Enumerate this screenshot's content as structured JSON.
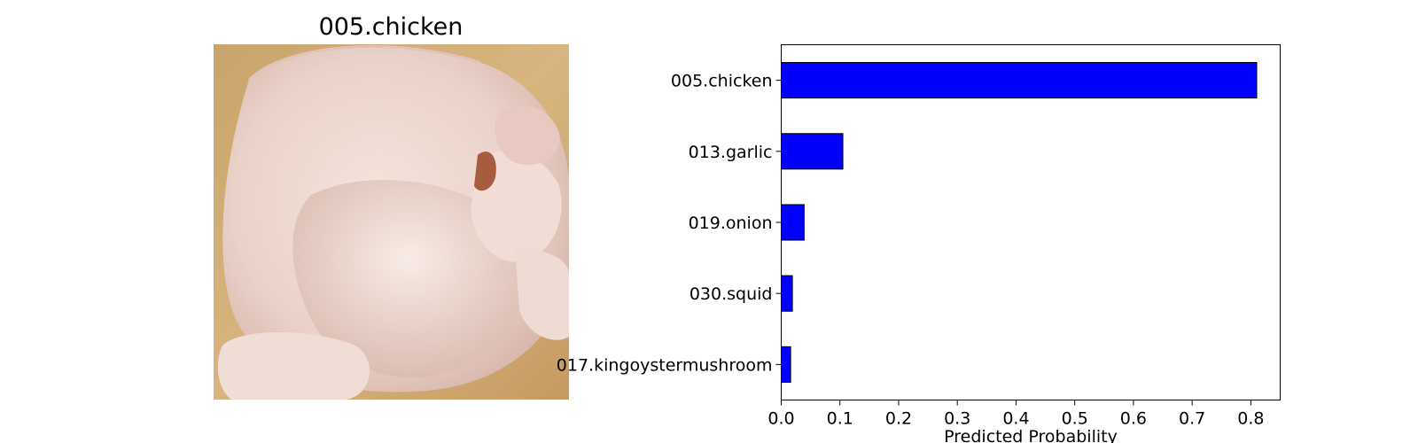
{
  "image_panel": {
    "title": "005.chicken",
    "content": "food-photo"
  },
  "chart_data": {
    "type": "bar",
    "orientation": "horizontal",
    "categories": [
      "005.chicken",
      "013.garlic",
      "019.onion",
      "030.squid",
      "017.kingoystermushroom"
    ],
    "values": [
      0.81,
      0.105,
      0.039,
      0.019,
      0.016
    ],
    "xlabel": "Predicted Probability",
    "ylabel": "",
    "xlim": [
      0.0,
      0.85
    ],
    "xticks": [
      "0.0",
      "0.1",
      "0.2",
      "0.3",
      "0.4",
      "0.5",
      "0.6",
      "0.7",
      "0.8"
    ],
    "grid": false,
    "bar_color": "#0000ff",
    "edge_color": "#000000"
  }
}
